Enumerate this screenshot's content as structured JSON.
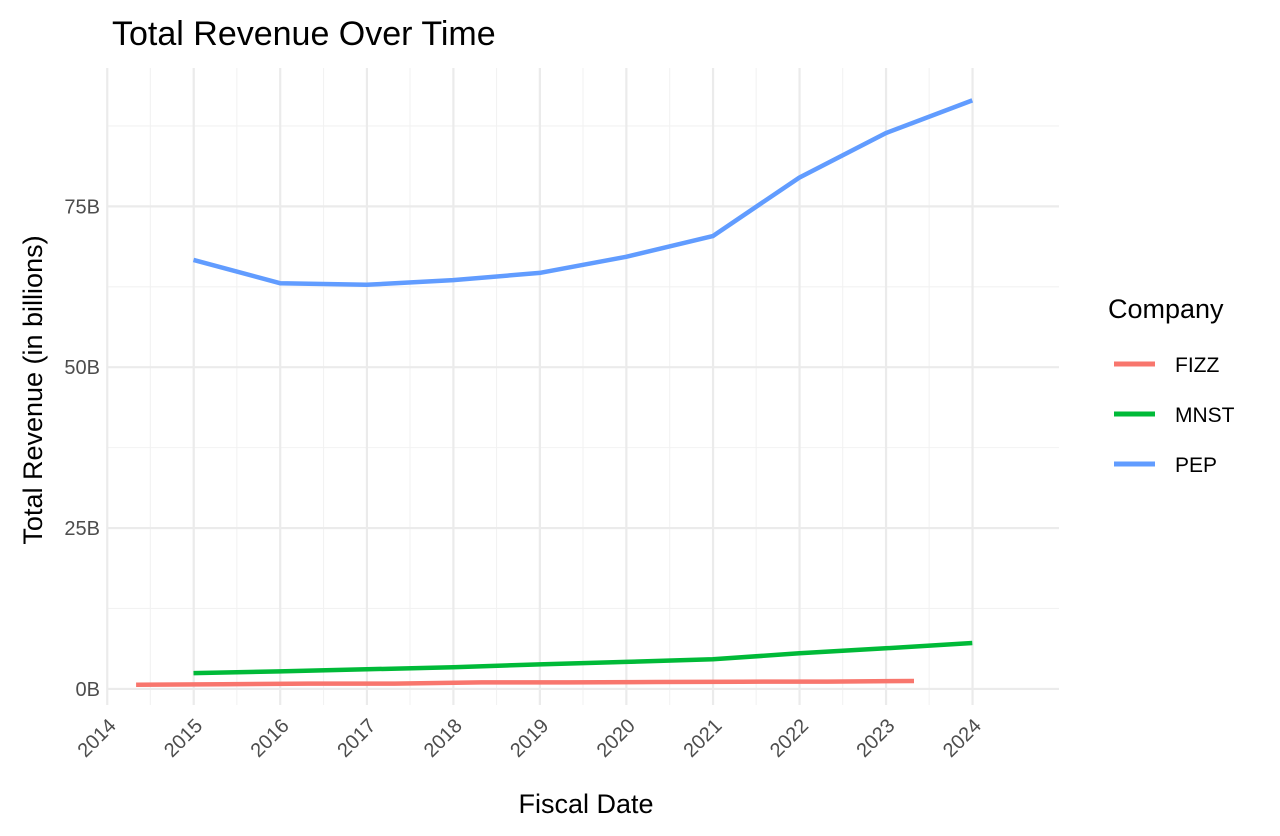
{
  "chart_data": {
    "type": "line",
    "title": "Total Revenue Over Time",
    "xlabel": "Fiscal Date",
    "ylabel": "Total Revenue (in billions)",
    "x_ticks": [
      "2014",
      "2015",
      "2016",
      "2017",
      "2018",
      "2019",
      "2020",
      "2021",
      "2022",
      "2023",
      "2024"
    ],
    "y_ticks": [
      {
        "value": 0,
        "label": "0B"
      },
      {
        "value": 25,
        "label": "25B"
      },
      {
        "value": 50,
        "label": "50B"
      },
      {
        "value": 75,
        "label": "75B"
      }
    ],
    "xlim": [
      "2013-12-31",
      "2024-12-31"
    ],
    "ylim": [
      -2.5,
      96.5
    ],
    "grid": true,
    "legend": {
      "title": "Company",
      "position": "right"
    },
    "series": [
      {
        "name": "FIZZ",
        "color": "#F8766D",
        "x": [
          "2014-05-03",
          "2015-05-02",
          "2016-04-30",
          "2017-04-29",
          "2018-04-28",
          "2019-04-27",
          "2020-05-02",
          "2021-05-01",
          "2022-04-30",
          "2023-04-29"
        ],
        "values": [
          0.64,
          0.71,
          0.83,
          0.83,
          1.01,
          1.01,
          1.07,
          1.12,
          1.14,
          1.23
        ]
      },
      {
        "name": "MNST",
        "color": "#00BA38",
        "x": [
          "2014-12-31",
          "2015-12-31",
          "2016-12-31",
          "2017-12-31",
          "2018-12-31",
          "2019-12-31",
          "2020-12-31",
          "2021-12-31",
          "2022-12-31",
          "2023-12-31"
        ],
        "values": [
          2.46,
          2.72,
          3.05,
          3.37,
          3.81,
          4.2,
          4.6,
          5.54,
          6.31,
          7.14
        ]
      },
      {
        "name": "PEP",
        "color": "#619CFF",
        "x": [
          "2014-12-31",
          "2015-12-31",
          "2016-12-31",
          "2017-12-31",
          "2018-12-31",
          "2019-12-31",
          "2020-12-31",
          "2021-12-31",
          "2022-12-31",
          "2023-12-31"
        ],
        "values": [
          66.68,
          63.06,
          62.8,
          63.53,
          64.66,
          67.16,
          70.37,
          79.47,
          86.39,
          91.47
        ]
      }
    ]
  }
}
